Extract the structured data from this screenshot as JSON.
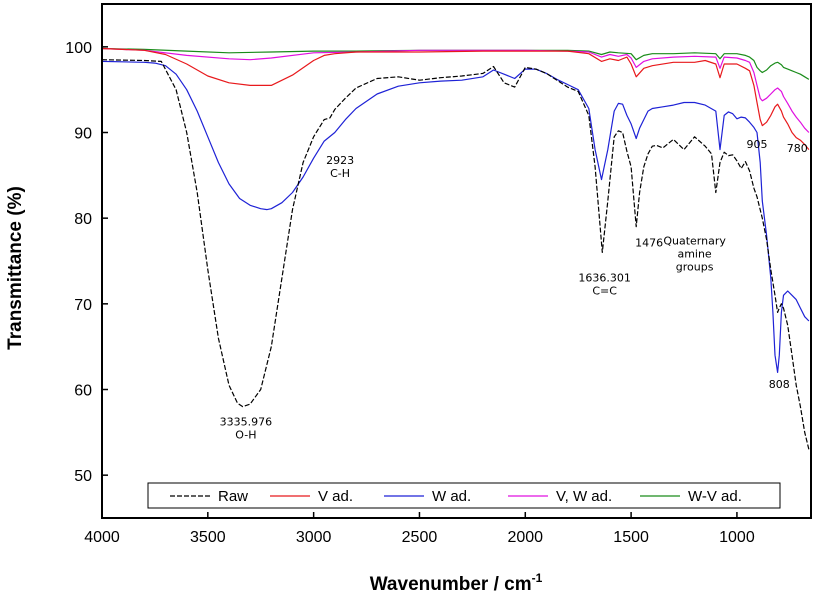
{
  "chart_data": {
    "type": "line",
    "title": "",
    "xlabel": "Wavenumber / cm",
    "xlabel_superscript": "-1",
    "ylabel": "Transmittance (%)",
    "xlim": [
      4000,
      650
    ],
    "ylim": [
      45,
      105
    ],
    "x_reversed": true,
    "grid": false,
    "legend_position": "bottom",
    "xticks": [
      4000,
      3500,
      3000,
      2500,
      2000,
      1500,
      1000
    ],
    "yticks": [
      50,
      60,
      70,
      80,
      90,
      100
    ],
    "series": [
      {
        "name": "Raw",
        "color": "#000000",
        "dash": "dashed",
        "x": [
          4000,
          3800,
          3720,
          3650,
          3600,
          3550,
          3500,
          3450,
          3400,
          3360,
          3335,
          3300,
          3250,
          3200,
          3150,
          3100,
          3050,
          3000,
          2950,
          2923,
          2900,
          2850,
          2800,
          2700,
          2600,
          2500,
          2400,
          2300,
          2200,
          2150,
          2100,
          2050,
          2000,
          1950,
          1900,
          1850,
          1800,
          1750,
          1700,
          1670,
          1636,
          1610,
          1580,
          1560,
          1540,
          1520,
          1500,
          1476,
          1460,
          1440,
          1420,
          1400,
          1380,
          1350,
          1300,
          1250,
          1200,
          1150,
          1120,
          1100,
          1080,
          1060,
          1040,
          1020,
          1000,
          980,
          960,
          940,
          920,
          905,
          880,
          860,
          840,
          820,
          808,
          800,
          790,
          780,
          760,
          740,
          720,
          700,
          680,
          660
        ],
        "y": [
          98.5,
          98.4,
          98.3,
          95,
          90,
          83,
          74,
          66,
          60.5,
          58.4,
          58,
          58.3,
          60,
          65,
          73,
          81,
          86.5,
          89.5,
          91.5,
          91.7,
          92.7,
          94,
          95.2,
          96.3,
          96.5,
          96.1,
          96.4,
          96.6,
          96.9,
          97.7,
          95.8,
          95.3,
          97.6,
          97.4,
          96.9,
          96.1,
          95.3,
          94.8,
          92,
          86,
          76,
          82,
          89.5,
          90.2,
          90,
          87.8,
          86,
          79,
          83,
          86,
          87.5,
          88.4,
          88.5,
          88.2,
          89.2,
          88,
          89.5,
          88.4,
          87.5,
          83,
          86.5,
          87.7,
          87.3,
          87.4,
          86.7,
          85.8,
          86.6,
          85.5,
          83.5,
          82.5,
          80,
          77.5,
          74,
          71,
          69,
          69.5,
          70,
          69.5,
          67.5,
          64,
          60.5,
          58,
          55,
          53
        ]
      },
      {
        "name": "V ad.",
        "color": "#e8191c",
        "dash": "solid",
        "x": [
          4000,
          3800,
          3700,
          3600,
          3500,
          3400,
          3300,
          3200,
          3100,
          3000,
          2950,
          2900,
          2800,
          2500,
          2200,
          2000,
          1800,
          1700,
          1640,
          1600,
          1560,
          1520,
          1500,
          1476,
          1440,
          1400,
          1300,
          1200,
          1150,
          1100,
          1080,
          1060,
          1000,
          960,
          940,
          920,
          905,
          890,
          880,
          860,
          840,
          820,
          808,
          790,
          780,
          760,
          740,
          720,
          700,
          680,
          660
        ],
        "y": [
          99.8,
          99.6,
          99.1,
          98,
          96.6,
          95.8,
          95.5,
          95.5,
          96.7,
          98.4,
          99,
          99.2,
          99.4,
          99.4,
          99.5,
          99.5,
          99.5,
          99.2,
          98.3,
          98.6,
          98.4,
          98.8,
          98,
          96.5,
          97.5,
          97.8,
          98.2,
          98.2,
          98.4,
          98,
          96.4,
          98,
          98,
          97.5,
          97.2,
          95.5,
          93.5,
          91.5,
          90.8,
          91.2,
          92,
          93,
          93.3,
          92.5,
          91.8,
          91,
          90,
          89.4,
          89.1,
          88.6,
          88
        ]
      },
      {
        "name": "W ad.",
        "color": "#1e22d6",
        "dash": "solid",
        "x": [
          4000,
          3800,
          3750,
          3700,
          3650,
          3600,
          3550,
          3500,
          3450,
          3400,
          3350,
          3300,
          3250,
          3220,
          3200,
          3150,
          3100,
          3050,
          3000,
          2950,
          2900,
          2850,
          2800,
          2700,
          2600,
          2500,
          2400,
          2300,
          2200,
          2150,
          2100,
          2050,
          2000,
          1950,
          1900,
          1850,
          1800,
          1750,
          1700,
          1670,
          1640,
          1610,
          1580,
          1560,
          1540,
          1520,
          1500,
          1476,
          1460,
          1440,
          1420,
          1400,
          1350,
          1300,
          1250,
          1200,
          1150,
          1100,
          1080,
          1060,
          1040,
          1020,
          1000,
          980,
          960,
          940,
          920,
          905,
          890,
          880,
          860,
          840,
          830,
          820,
          808,
          800,
          790,
          780,
          760,
          740,
          720,
          700,
          680,
          660
        ],
        "y": [
          98.3,
          98.2,
          98.1,
          97.8,
          96.8,
          95,
          92.5,
          89.5,
          86.5,
          84,
          82.3,
          81.5,
          81.1,
          81,
          81.1,
          81.8,
          83,
          84.8,
          87,
          89,
          90,
          91.5,
          92.8,
          94.5,
          95.4,
          95.8,
          96,
          96.1,
          96.5,
          97.3,
          96.8,
          96.3,
          97.4,
          97.4,
          96.9,
          96.2,
          95.6,
          95,
          92.8,
          88,
          84.5,
          88,
          92.5,
          93.4,
          93.3,
          92,
          91,
          89.3,
          90.5,
          91.5,
          92.5,
          92.8,
          93,
          93.2,
          93.5,
          93.5,
          93.2,
          92.5,
          88,
          92,
          92.4,
          92.2,
          91.6,
          91.8,
          91.7,
          91.2,
          90.6,
          90,
          86.5,
          82,
          78,
          73,
          69,
          64,
          62,
          64,
          69,
          71,
          71.5,
          71,
          70.5,
          69.5,
          68.5,
          68
        ]
      },
      {
        "name": "V, W ad.",
        "color": "#e010e0",
        "dash": "solid",
        "x": [
          4000,
          3800,
          3600,
          3400,
          3300,
          3200,
          3000,
          2800,
          2500,
          2200,
          2000,
          1800,
          1700,
          1640,
          1600,
          1560,
          1520,
          1500,
          1476,
          1440,
          1400,
          1300,
          1200,
          1100,
          1080,
          1060,
          1000,
          960,
          940,
          920,
          905,
          890,
          880,
          860,
          840,
          820,
          808,
          790,
          780,
          760,
          740,
          720,
          700,
          680,
          660
        ],
        "y": [
          99.8,
          99.6,
          99,
          98.6,
          98.5,
          98.7,
          99.3,
          99.4,
          99.6,
          99.6,
          99.6,
          99.5,
          99.4,
          98.8,
          99.1,
          98.9,
          99.1,
          98.7,
          97.6,
          98.3,
          98.6,
          98.8,
          98.9,
          98.8,
          97.5,
          98.8,
          98.7,
          98.4,
          98.2,
          97,
          95.5,
          94,
          93.7,
          94,
          94.5,
          95,
          95.2,
          94.8,
          94.2,
          93.4,
          92.5,
          91.8,
          91.2,
          90.5,
          90
        ]
      },
      {
        "name": "W-V ad.",
        "color": "#1a8c1a",
        "dash": "solid",
        "x": [
          4000,
          3800,
          3600,
          3400,
          3200,
          3000,
          2800,
          2500,
          2200,
          2000,
          1800,
          1700,
          1640,
          1600,
          1560,
          1500,
          1476,
          1440,
          1400,
          1300,
          1200,
          1100,
          1080,
          1060,
          1000,
          960,
          940,
          920,
          905,
          890,
          880,
          860,
          840,
          820,
          808,
          790,
          780,
          760,
          740,
          720,
          700,
          680,
          660
        ],
        "y": [
          99.8,
          99.7,
          99.5,
          99.3,
          99.4,
          99.5,
          99.5,
          99.6,
          99.6,
          99.6,
          99.6,
          99.5,
          99.1,
          99.4,
          99.3,
          99.2,
          98.5,
          99,
          99.2,
          99.2,
          99.3,
          99.2,
          98.6,
          99.2,
          99.2,
          99,
          98.8,
          98.4,
          97.6,
          97.2,
          97,
          97.3,
          97.8,
          98.1,
          98.2,
          97.9,
          97.6,
          97.4,
          97.2,
          97,
          96.8,
          96.5,
          96.2
        ]
      }
    ],
    "annotations": [
      {
        "lines": [
          "3335.976",
          "O-H"
        ],
        "x": 3320,
        "y": 55.8
      },
      {
        "lines": [
          "2923",
          "C-H"
        ],
        "x": 2875,
        "y": 86.3
      },
      {
        "lines": [
          "1636.301",
          "C=C"
        ],
        "x": 1625,
        "y": 72.6
      },
      {
        "lines": [
          "1476"
        ],
        "x": 1415,
        "y": 76.7
      },
      {
        "lines": [
          "Quaternary",
          "amine",
          "groups"
        ],
        "x": 1200,
        "y": 76.9
      },
      {
        "lines": [
          "905"
        ],
        "x": 905,
        "y": 88.2
      },
      {
        "lines": [
          "780"
        ],
        "x": 715,
        "y": 87.7
      },
      {
        "lines": [
          "808"
        ],
        "x": 800,
        "y": 60.2
      }
    ]
  }
}
